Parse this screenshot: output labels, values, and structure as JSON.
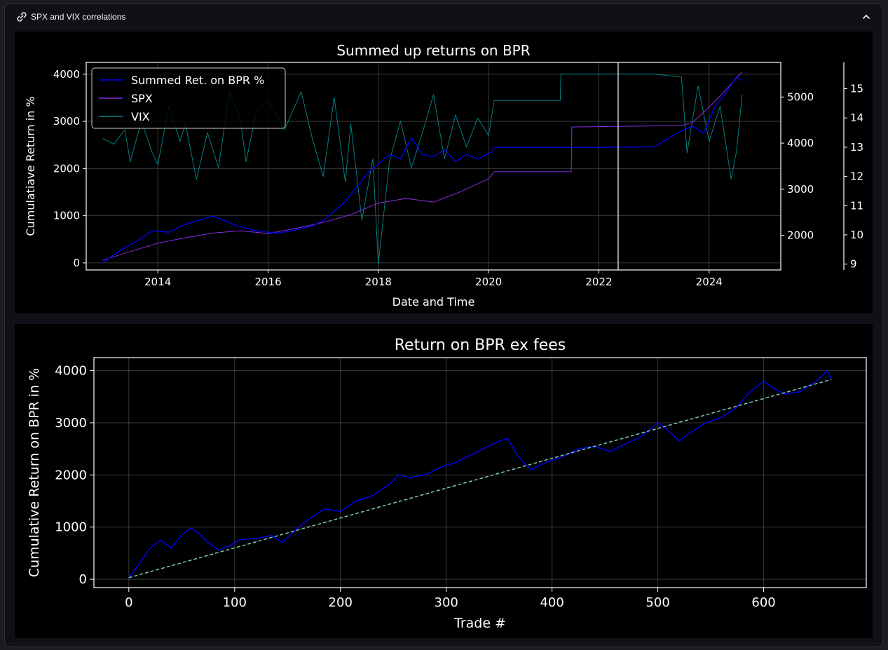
{
  "expander": {
    "title": "SPX and VIX correlations",
    "icon": "link-icon",
    "toggle_icon": "chevron-up-icon"
  },
  "colors": {
    "bpr": "#0000ff",
    "spx": "#8a2be2",
    "vix": "#008b8b",
    "trend": "#7fc7b0",
    "background": "#000000",
    "axes": "#ffffff"
  },
  "chart_data": [
    {
      "type": "line",
      "title": "Summed up returns on BPR",
      "xlabel": "Date and Time",
      "ylabel": "Cumulatiave Return in %",
      "xlim": [
        2012.7,
        2025.3
      ],
      "ylim": [
        -150,
        4250
      ],
      "xticks": [
        2014,
        2016,
        2018,
        2020,
        2022,
        2024
      ],
      "yticks": [
        0,
        1000,
        2000,
        3000,
        4000
      ],
      "secondary_axes": [
        {
          "series": "SPX",
          "ylim": [
            1250,
            5750
          ],
          "yticks": [
            2000,
            3000,
            4000,
            5000
          ]
        },
        {
          "series": "VIX",
          "ylim": [
            8.8,
            15.9
          ],
          "yticks": [
            9,
            10,
            11,
            12,
            13,
            14,
            15
          ]
        }
      ],
      "grid": true,
      "legend_position": "upper-left",
      "vertical_marker_x": 2022.35,
      "series": [
        {
          "name": "Summed Ret. on BPR %",
          "axis": "left",
          "x": [
            2013.0,
            2013.3,
            2013.6,
            2013.9,
            2014.2,
            2014.5,
            2014.8,
            2015.0,
            2015.2,
            2015.4,
            2015.7,
            2016.0,
            2016.2,
            2016.5,
            2016.8,
            2017.0,
            2017.2,
            2017.4,
            2017.6,
            2017.8,
            2018.0,
            2018.2,
            2018.4,
            2018.6,
            2018.8,
            2019.0,
            2019.2,
            2019.4,
            2019.6,
            2019.8,
            2020.05,
            2020.1,
            2021.0,
            2022.0,
            2023.0,
            2023.5,
            2023.7,
            2023.9,
            2024.1,
            2024.3,
            2024.5,
            2024.6
          ],
          "y": [
            0,
            250,
            450,
            680,
            650,
            820,
            920,
            990,
            900,
            800,
            700,
            650,
            630,
            700,
            780,
            900,
            1100,
            1300,
            1600,
            1900,
            2100,
            2300,
            2200,
            2650,
            2300,
            2250,
            2400,
            2150,
            2300,
            2200,
            2350,
            2450,
            2450,
            2450,
            2460,
            2800,
            2900,
            2750,
            3300,
            3600,
            3950,
            3850
          ]
        },
        {
          "name": "SPX",
          "axis": "right-1",
          "x": [
            2013.0,
            2013.5,
            2014.0,
            2014.5,
            2015.0,
            2015.5,
            2016.0,
            2016.5,
            2017.0,
            2017.5,
            2018.0,
            2018.5,
            2019.0,
            2019.5,
            2020.0,
            2020.1,
            2021.5,
            2021.51,
            2023.5,
            2023.7,
            2024.0,
            2024.3,
            2024.6
          ],
          "y": [
            1460,
            1650,
            1830,
            1950,
            2050,
            2100,
            2040,
            2150,
            2280,
            2450,
            2700,
            2800,
            2720,
            2950,
            3230,
            3380,
            3380,
            4350,
            4380,
            4450,
            4780,
            5150,
            5550
          ]
        },
        {
          "name": "VIX",
          "axis": "right-2",
          "x": [
            2013.0,
            2013.2,
            2013.4,
            2013.5,
            2013.7,
            2013.9,
            2014.0,
            2014.2,
            2014.4,
            2014.5,
            2014.7,
            2014.9,
            2015.1,
            2015.3,
            2015.5,
            2015.6,
            2015.8,
            2016.0,
            2016.3,
            2016.6,
            2016.8,
            2017.0,
            2017.2,
            2017.4,
            2017.5,
            2017.7,
            2017.9,
            2018.0,
            2018.2,
            2018.4,
            2018.6,
            2018.8,
            2019.0,
            2019.2,
            2019.4,
            2019.6,
            2019.8,
            2020.0,
            2020.1,
            2021.3,
            2021.31,
            2023.0,
            2023.5,
            2023.6,
            2023.8,
            2024.0,
            2024.2,
            2024.4,
            2024.5,
            2024.6
          ],
          "y": [
            13.3,
            13.1,
            13.6,
            12.5,
            13.9,
            12.8,
            12.4,
            14.4,
            13.2,
            13.8,
            11.9,
            13.5,
            12.3,
            14.9,
            13.9,
            12.5,
            14.3,
            14.6,
            13.6,
            14.9,
            13.3,
            12.0,
            14.7,
            11.8,
            13.8,
            10.5,
            12.6,
            9.0,
            12.5,
            13.9,
            12.3,
            13.5,
            14.8,
            12.6,
            14.1,
            13.0,
            14.0,
            13.4,
            14.6,
            14.6,
            15.5,
            15.5,
            15.4,
            12.8,
            15.1,
            13.2,
            14.4,
            11.9,
            12.9,
            14.8
          ]
        }
      ]
    },
    {
      "type": "line",
      "title": "Return on BPR ex fees",
      "xlabel": "Trade #",
      "ylabel": "Cumulative Return on BPR in %",
      "xlim": [
        -33,
        697
      ],
      "ylim": [
        -160,
        4250
      ],
      "xticks": [
        0,
        100,
        200,
        300,
        400,
        500,
        600
      ],
      "yticks": [
        0,
        1000,
        2000,
        3000,
        4000
      ],
      "grid": true,
      "series": [
        {
          "name": "",
          "style": "solid",
          "x": [
            0,
            10,
            20,
            30,
            40,
            50,
            58,
            65,
            75,
            85,
            95,
            105,
            120,
            135,
            145,
            155,
            170,
            185,
            200,
            215,
            230,
            245,
            255,
            265,
            280,
            295,
            310,
            325,
            340,
            350,
            358,
            368,
            380,
            395,
            410,
            425,
            440,
            455,
            470,
            485,
            500,
            510,
            520,
            530,
            545,
            560,
            575,
            585,
            600,
            610,
            620,
            635,
            650,
            660,
            664
          ],
          "y": [
            30,
            300,
            600,
            750,
            600,
            850,
            980,
            900,
            700,
            560,
            640,
            760,
            780,
            840,
            700,
            900,
            1150,
            1350,
            1300,
            1500,
            1600,
            1800,
            2000,
            1950,
            2000,
            2150,
            2250,
            2400,
            2550,
            2650,
            2700,
            2350,
            2100,
            2250,
            2350,
            2500,
            2550,
            2450,
            2600,
            2750,
            3000,
            2850,
            2650,
            2800,
            3000,
            3100,
            3300,
            3550,
            3800,
            3650,
            3550,
            3600,
            3800,
            4000,
            3850
          ]
        },
        {
          "name": "",
          "style": "dashed",
          "x": [
            0,
            664
          ],
          "y": [
            30,
            3830
          ]
        }
      ]
    }
  ]
}
